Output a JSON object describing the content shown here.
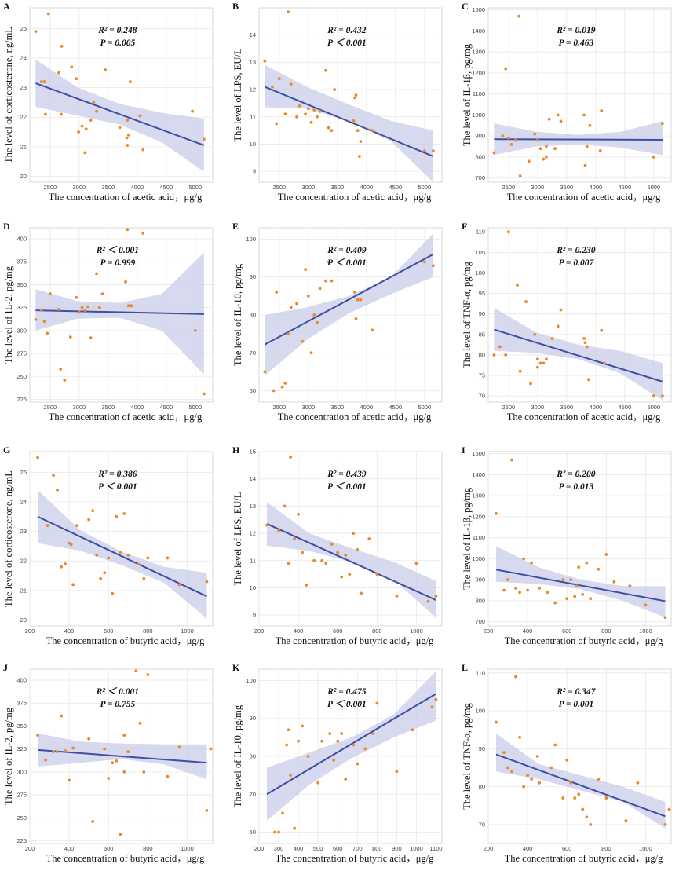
{
  "figure": {
    "layout": "4 rows x 3 columns of scatter plots with linear regression line and 95% confidence band"
  },
  "colors": {
    "point": "#e8892b",
    "line": "#3d4fa3",
    "band": "#c9cce8",
    "grid": "#e8e8e8",
    "frame": "#d9d9d9"
  },
  "chart_data": [
    {
      "letter": "A",
      "type": "scatter",
      "xlabel": "The concentration of acetic acid，μg/g",
      "ylabel": "The level of corticosterone, ng/mL",
      "xlim": [
        2150,
        5300
      ],
      "ylim": [
        19.8,
        25.7
      ],
      "xticks": [
        2500,
        3000,
        3500,
        4000,
        4500,
        5000
      ],
      "yticks": [
        20,
        21,
        22,
        23,
        24,
        25
      ],
      "r2": "R² = 0.248",
      "p": "P = 0.005",
      "fit": [
        [
          2250,
          23.15
        ],
        [
          5150,
          21.05
        ]
      ],
      "ci_lower": [
        22.35,
        22.05,
        21.75,
        21.15,
        20.15
      ],
      "ci_upper": [
        23.95,
        23.0,
        22.45,
        22.15,
        21.95
      ],
      "x": [
        2250,
        2400,
        2470,
        2350,
        2700,
        2870,
        2950,
        2650,
        2690,
        2990,
        3120,
        3200,
        3250,
        3300,
        3450,
        3100,
        3050,
        3820,
        3880,
        3830,
        3830,
        3850,
        4050,
        4100,
        4950,
        5150,
        2420,
        3700
      ],
      "y": [
        24.9,
        23.2,
        25.5,
        23.2,
        24.4,
        23.7,
        23.3,
        23.5,
        22.1,
        21.5,
        21.6,
        21.9,
        22.5,
        22.2,
        23.6,
        20.8,
        21.7,
        21.3,
        23.2,
        21.9,
        21.05,
        21.4,
        22.05,
        20.9,
        22.2,
        21.25,
        22.1,
        21.65
      ]
    },
    {
      "letter": "B",
      "type": "scatter",
      "xlabel": "The concentration of acetic acid，μg/g",
      "ylabel": "The level of LPS, EU/L",
      "xlim": [
        2150,
        5300
      ],
      "ylim": [
        8.6,
        15.0
      ],
      "xticks": [
        2500,
        3000,
        3500,
        4000,
        4500,
        5000
      ],
      "yticks": [
        9,
        10,
        11,
        12,
        13,
        14
      ],
      "r2": "R² = 0.432",
      "p": "P ＜ 0.001",
      "fit": [
        [
          2250,
          12.1
        ],
        [
          5150,
          9.55
        ]
      ],
      "ci_lower": [
        11.35,
        11.3,
        10.85,
        10.1,
        8.6
      ],
      "ci_upper": [
        12.9,
        12.1,
        11.45,
        10.85,
        10.5
      ],
      "x": [
        2250,
        2380,
        2450,
        2500,
        2650,
        2700,
        2800,
        2850,
        2950,
        3000,
        3050,
        3100,
        3150,
        3200,
        3300,
        3350,
        3400,
        3450,
        3800,
        3820,
        3850,
        3880,
        3900,
        4100,
        5000,
        5150,
        2600,
        3780
      ],
      "y": [
        13.05,
        12.1,
        10.75,
        12.4,
        14.85,
        12.2,
        11.0,
        11.4,
        11.1,
        11.3,
        10.8,
        11.25,
        11.0,
        11.2,
        12.7,
        10.6,
        10.5,
        12.0,
        11.7,
        11.8,
        10.5,
        9.55,
        10.1,
        10.5,
        9.75,
        9.75,
        11.1,
        10.85
      ]
    },
    {
      "letter": "C",
      "type": "scatter",
      "xlabel": "The concentration of acetic acid，μg/g",
      "ylabel": "The level of IL-1β, pg/mg",
      "xlim": [
        2150,
        5300
      ],
      "ylim": [
        680,
        1510
      ],
      "xticks": [
        2500,
        3000,
        3500,
        4000,
        4500,
        5000
      ],
      "yticks": [
        700,
        800,
        900,
        1000,
        1100,
        1200,
        1300,
        1400,
        1500
      ],
      "r2": "R² = 0.019",
      "p": "P = 0.463",
      "fit": [
        [
          2250,
          885
        ],
        [
          5150,
          882
        ]
      ],
      "ci_lower": [
        810,
        850,
        860,
        845,
        810
      ],
      "ci_upper": [
        960,
        920,
        905,
        920,
        970
      ],
      "x": [
        2250,
        2400,
        2450,
        2550,
        2680,
        2700,
        2850,
        2950,
        3000,
        3050,
        3100,
        3150,
        3200,
        3300,
        3350,
        3400,
        3800,
        3850,
        3900,
        4100,
        5000,
        5150,
        2500,
        3820,
        2620,
        3150,
        4080
      ],
      "y": [
        820,
        900,
        1220,
        860,
        1470,
        710,
        780,
        910,
        880,
        840,
        790,
        850,
        980,
        840,
        1000,
        970,
        1000,
        850,
        950,
        1020,
        800,
        960,
        890,
        760,
        880,
        800,
        830
      ]
    },
    {
      "letter": "D",
      "type": "scatter",
      "xlabel": "The concentration of acetic acid，μg/g",
      "ylabel": "The level of IL-2, pg/mg",
      "xlim": [
        2150,
        5300
      ],
      "ylim": [
        222,
        412
      ],
      "xticks": [
        2500,
        3000,
        3500,
        4000,
        4500,
        5000
      ],
      "yticks": [
        225,
        250,
        275,
        300,
        325,
        350,
        375,
        400
      ],
      "r2": "R² ＜ 0.001",
      "p": "P = 0.999",
      "fit": [
        [
          2250,
          322
        ],
        [
          5150,
          318
        ]
      ],
      "ci_lower": [
        300,
        313,
        314,
        300,
        252
      ],
      "ci_upper": [
        345,
        332,
        330,
        340,
        385
      ],
      "x": [
        2250,
        2350,
        2450,
        2500,
        2650,
        2680,
        2750,
        2850,
        2950,
        3000,
        3050,
        3100,
        3150,
        3200,
        3300,
        3350,
        3400,
        3800,
        3850,
        3900,
        4100,
        5000,
        5150,
        2400,
        3830
      ],
      "y": [
        312,
        322,
        297,
        340,
        323,
        258,
        246,
        293,
        336,
        320,
        325,
        322,
        326,
        292,
        362,
        325,
        340,
        353,
        327,
        327,
        406,
        300,
        231,
        310,
        410
      ]
    },
    {
      "letter": "E",
      "type": "scatter",
      "xlabel": "The concentration of acetic acid，μg/g",
      "ylabel": "The level of IL-10, pg/mg",
      "xlim": [
        2150,
        5300
      ],
      "ylim": [
        57,
        103
      ],
      "xticks": [
        2500,
        3000,
        3500,
        4000,
        4500,
        5000
      ],
      "yticks": [
        60,
        70,
        80,
        90,
        100
      ],
      "r2": "R² = 0.409",
      "p": "P ＜ 0.001",
      "fit": [
        [
          2250,
          72.2
        ],
        [
          5150,
          96.0
        ]
      ],
      "ci_lower": [
        64.0,
        73.5,
        80.5,
        85.5,
        90.0
      ],
      "ci_upper": [
        80.0,
        82.0,
        85.0,
        90.0,
        101.5
      ],
      "x": [
        2250,
        2400,
        2450,
        2550,
        2650,
        2700,
        2800,
        2900,
        2950,
        3000,
        3050,
        3100,
        3150,
        3200,
        3300,
        3350,
        3400,
        3800,
        3850,
        3900,
        4100,
        5000,
        5150,
        2600,
        3820
      ],
      "y": [
        65,
        60,
        86,
        61,
        75,
        82,
        83,
        73,
        92,
        85,
        70,
        80,
        78,
        87,
        89,
        94,
        89,
        86,
        84,
        84,
        76,
        94,
        93,
        62,
        79
      ]
    },
    {
      "letter": "F",
      "type": "scatter",
      "xlabel": "The concentration of acetic acid，μg/g",
      "ylabel": "The level of TNF-α, pg/mg",
      "xlim": [
        2150,
        5300
      ],
      "ylim": [
        68.5,
        111
      ],
      "xticks": [
        2500,
        3000,
        3500,
        4000,
        4500,
        5000
      ],
      "yticks": [
        70,
        75,
        80,
        85,
        90,
        95,
        100,
        105,
        110
      ],
      "r2": "R² = 0.230",
      "p": "P = 0.007",
      "fit": [
        [
          2250,
          86.2
        ],
        [
          5150,
          73.5
        ]
      ],
      "ci_lower": [
        81.0,
        80.5,
        79.0,
        75.5,
        69.0
      ],
      "ci_upper": [
        91.5,
        85.5,
        82.5,
        81.0,
        78.0
      ],
      "x": [
        2250,
        2350,
        2450,
        2500,
        2650,
        2700,
        2800,
        2880,
        2950,
        3000,
        3050,
        3100,
        3150,
        3250,
        3350,
        3400,
        3800,
        3820,
        3850,
        3880,
        4100,
        4150,
        5000,
        5150,
        3000
      ],
      "y": [
        80,
        82,
        80,
        110,
        97,
        76,
        93,
        73,
        85,
        77,
        78,
        78,
        79,
        84,
        87,
        91,
        84,
        83,
        82,
        74,
        86,
        78,
        70,
        70,
        79
      ]
    },
    {
      "letter": "G",
      "type": "scatter",
      "xlabel": "The concentration of butyric acid，μg/g",
      "ylabel": "The level of corticosterone, ng/mL",
      "xlim": [
        200,
        1130
      ],
      "ylim": [
        19.8,
        25.7
      ],
      "xticks": [
        200,
        400,
        600,
        800,
        1000
      ],
      "yticks": [
        20,
        21,
        22,
        23,
        24,
        25
      ],
      "r2": "R² = 0.386",
      "p": "P ＜ 0.001",
      "fit": [
        [
          240,
          23.5
        ],
        [
          1100,
          20.8
        ]
      ],
      "ci_lower": [
        22.6,
        22.35,
        21.85,
        21.25,
        20.05
      ],
      "ci_upper": [
        24.4,
        23.05,
        22.3,
        21.8,
        21.6
      ],
      "x": [
        240,
        290,
        320,
        340,
        360,
        380,
        400,
        420,
        440,
        500,
        520,
        540,
        560,
        580,
        600,
        620,
        640,
        660,
        680,
        700,
        750,
        780,
        800,
        900,
        960,
        1100,
        410
      ],
      "y": [
        25.5,
        23.2,
        24.9,
        24.4,
        21.8,
        21.9,
        22.6,
        21.2,
        23.2,
        23.4,
        23.7,
        22.2,
        21.4,
        21.6,
        22.1,
        20.9,
        23.5,
        22.3,
        23.6,
        22.2,
        21.9,
        21.4,
        22.1,
        22.1,
        21.2,
        21.3,
        22.55
      ]
    },
    {
      "letter": "H",
      "type": "scatter",
      "xlabel": "The concentration of butyric acid，μg/g",
      "ylabel": "The level of LPS, EU/L",
      "xlim": [
        200,
        1130
      ],
      "ylim": [
        8.6,
        15.0
      ],
      "xticks": [
        200,
        400,
        600,
        800,
        1000
      ],
      "yticks": [
        9,
        10,
        11,
        12,
        13,
        14,
        15
      ],
      "r2": "R² = 0.439",
      "p": "P ＜ 0.001",
      "fit": [
        [
          240,
          12.35
        ],
        [
          1100,
          9.55
        ]
      ],
      "ci_lower": [
        11.55,
        11.35,
        10.95,
        10.3,
        8.9
      ],
      "ci_upper": [
        13.15,
        12.0,
        11.45,
        10.95,
        10.25
      ],
      "x": [
        240,
        300,
        330,
        360,
        380,
        400,
        420,
        440,
        480,
        520,
        540,
        570,
        600,
        620,
        640,
        660,
        680,
        700,
        720,
        760,
        800,
        900,
        1000,
        1060,
        1100,
        350
      ],
      "y": [
        12.3,
        12.1,
        13.0,
        14.8,
        11.8,
        12.7,
        11.3,
        10.1,
        11.0,
        11.0,
        10.9,
        11.6,
        11.3,
        10.4,
        11.2,
        10.5,
        12.0,
        11.4,
        9.8,
        11.8,
        10.5,
        9.7,
        10.9,
        9.5,
        9.7,
        10.9
      ]
    },
    {
      "letter": "I",
      "type": "scatter",
      "xlabel": "The concentration of butyric acid，μg/g",
      "ylabel": "The level of IL-1β, pg/mg",
      "xlim": [
        200,
        1130
      ],
      "ylim": [
        680,
        1510
      ],
      "xticks": [
        200,
        400,
        600,
        800,
        1000
      ],
      "yticks": [
        700,
        800,
        900,
        1000,
        1100,
        1200,
        1300,
        1400,
        1500
      ],
      "r2": "R² = 0.200",
      "p": "P = 0.013",
      "fit": [
        [
          240,
          948
        ],
        [
          1100,
          798
        ]
      ],
      "ci_lower": [
        890,
        880,
        855,
        800,
        720
      ],
      "ci_upper": [
        1060,
        960,
        900,
        870,
        870
      ],
      "x": [
        240,
        280,
        300,
        320,
        340,
        360,
        380,
        400,
        420,
        460,
        500,
        540,
        580,
        600,
        620,
        640,
        660,
        680,
        700,
        720,
        760,
        800,
        840,
        920,
        1000,
        1100,
        650
      ],
      "y": [
        1215,
        850,
        900,
        1470,
        860,
        840,
        1000,
        850,
        980,
        860,
        840,
        790,
        900,
        810,
        900,
        820,
        960,
        830,
        980,
        810,
        950,
        1020,
        890,
        870,
        780,
        720,
        870
      ]
    },
    {
      "letter": "J",
      "type": "scatter",
      "xlabel": "The concentration of butyric acid，μg/g",
      "ylabel": "The level of IL-2, pg/mg",
      "xlim": [
        200,
        1130
      ],
      "ylim": [
        222,
        412
      ],
      "xticks": [
        200,
        400,
        600,
        800,
        1000
      ],
      "yticks": [
        225,
        250,
        275,
        300,
        325,
        350,
        375,
        400
      ],
      "r2": "R² ＜ 0.001",
      "p": "P = 0.755",
      "fit": [
        [
          240,
          324
        ],
        [
          1100,
          310
        ]
      ],
      "ci_lower": [
        306,
        310,
        314,
        308,
        292
      ],
      "ci_upper": [
        342,
        333,
        331,
        330,
        330
      ],
      "x": [
        240,
        280,
        320,
        340,
        360,
        380,
        400,
        420,
        500,
        520,
        580,
        600,
        620,
        640,
        660,
        680,
        700,
        740,
        760,
        780,
        800,
        900,
        960,
        1100,
        1120,
        680
      ],
      "y": [
        340,
        313,
        322,
        322,
        361,
        323,
        291,
        326,
        336,
        246,
        325,
        293,
        310,
        312,
        232,
        340,
        322,
        410,
        353,
        300,
        406,
        295,
        327,
        258,
        325,
        300
      ]
    },
    {
      "letter": "K",
      "type": "scatter",
      "xlabel": "The concentration of butyric acid，μg/g",
      "ylabel": "The level of IL-10, pg/mg",
      "xlim": [
        200,
        1130
      ],
      "ylim": [
        57,
        103
      ],
      "xticks": [
        200,
        300,
        400,
        500,
        600,
        700,
        800,
        900,
        1000,
        1100
      ],
      "yticks": [
        60,
        70,
        80,
        90,
        100
      ],
      "r2": "R² = 0.475",
      "p": "P ＜ 0.001",
      "fit": [
        [
          240,
          70
        ],
        [
          1100,
          96.5
        ]
      ],
      "ci_lower": [
        63.0,
        72.5,
        79.5,
        85.0,
        89.5
      ],
      "ci_upper": [
        77.0,
        81.0,
        85.0,
        91.0,
        102.5
      ],
      "x": [
        280,
        300,
        320,
        340,
        360,
        380,
        400,
        420,
        450,
        500,
        520,
        560,
        580,
        600,
        620,
        640,
        680,
        700,
        740,
        780,
        800,
        900,
        980,
        1080,
        1100,
        350
      ],
      "y": [
        60,
        60,
        65,
        83,
        75,
        61,
        84,
        88,
        80,
        73,
        84,
        86,
        79,
        84,
        86,
        74,
        83,
        78,
        82,
        86,
        94,
        76,
        87,
        93,
        95,
        87
      ]
    },
    {
      "letter": "L",
      "type": "scatter",
      "xlabel": "The concentration of butyric acid，μg/g",
      "ylabel": "The level of TNF-α, pg/mg",
      "xlim": [
        200,
        1130
      ],
      "ylim": [
        65,
        111
      ],
      "xticks": [
        200,
        400,
        600,
        800,
        1000
      ],
      "yticks": [
        70,
        80,
        90,
        100,
        110
      ],
      "r2": "R² = 0.347",
      "p": "P = 0.001",
      "fit": [
        [
          240,
          88.5
        ],
        [
          1100,
          72.2
        ]
      ],
      "ci_lower": [
        84.0,
        82.0,
        79.0,
        76.0,
        69.0
      ],
      "ci_upper": [
        94.0,
        86.0,
        83.0,
        80.0,
        76.0
      ],
      "x": [
        240,
        280,
        300,
        320,
        340,
        360,
        380,
        400,
        420,
        460,
        520,
        540,
        580,
        600,
        620,
        640,
        660,
        680,
        700,
        720,
        760,
        800,
        900,
        960,
        1100,
        1120,
        450
      ],
      "y": [
        97,
        89,
        85,
        84,
        109,
        93,
        80,
        83,
        82,
        81,
        85,
        91,
        77,
        87,
        81,
        77,
        78,
        74,
        72,
        70,
        82,
        77,
        71,
        81,
        70,
        74,
        88
      ]
    }
  ]
}
